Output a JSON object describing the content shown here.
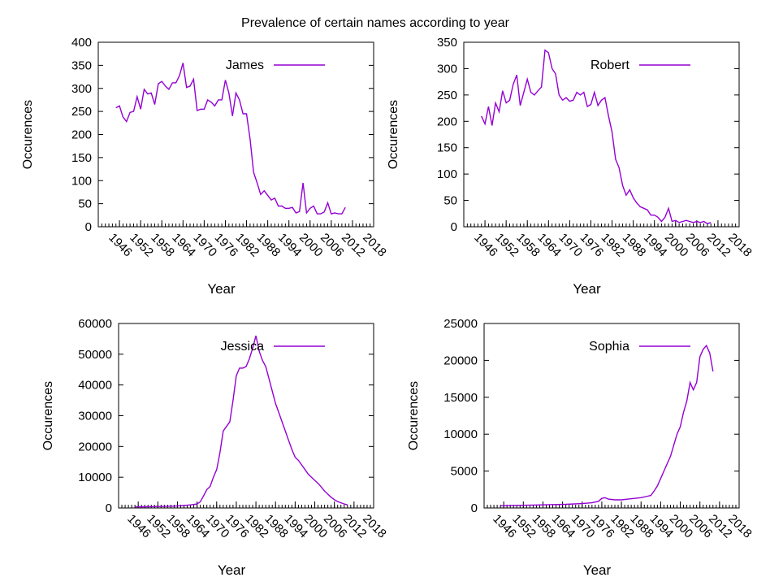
{
  "figure_title": "Prevalence of certain names according to year",
  "series_color": "#9400d3",
  "chart_data": [
    {
      "type": "line",
      "title": "",
      "xlabel": "Year",
      "ylabel": "Occurences",
      "legend": "top-right",
      "grid": false,
      "xlim": [
        1940,
        2018
      ],
      "ylim": [
        0,
        400
      ],
      "xticks": [
        "1946",
        "1952",
        "1958",
        "1964",
        "1970",
        "1976",
        "1982",
        "1988",
        "1994",
        "2000",
        "2006",
        "2012",
        "2018"
      ],
      "yticks": [
        "0",
        "50",
        "100",
        "150",
        "200",
        "250",
        "300",
        "350",
        "400"
      ],
      "series": [
        {
          "name": "James",
          "x": [
            1945,
            1946,
            1947,
            1948,
            1949,
            1950,
            1951,
            1952,
            1953,
            1954,
            1955,
            1956,
            1957,
            1958,
            1959,
            1960,
            1961,
            1962,
            1963,
            1964,
            1965,
            1966,
            1967,
            1968,
            1969,
            1970,
            1971,
            1972,
            1973,
            1974,
            1975,
            1976,
            1977,
            1978,
            1979,
            1980,
            1981,
            1982,
            1983,
            1984,
            1985,
            1986,
            1987,
            1988,
            1989,
            1990,
            1991,
            1992,
            1993,
            1994,
            1995,
            1996,
            1997,
            1998,
            1999,
            2000,
            2001,
            2002,
            2003,
            2004,
            2005,
            2006,
            2007,
            2008,
            2009,
            2010
          ],
          "values": [
            258,
            262,
            238,
            228,
            248,
            250,
            282,
            255,
            298,
            288,
            290,
            265,
            310,
            315,
            305,
            298,
            312,
            312,
            328,
            355,
            302,
            305,
            320,
            252,
            255,
            255,
            275,
            270,
            262,
            275,
            275,
            318,
            290,
            240,
            290,
            275,
            245,
            245,
            190,
            118,
            95,
            70,
            78,
            68,
            58,
            62,
            45,
            45,
            40,
            40,
            42,
            30,
            33,
            95,
            30,
            40,
            45,
            28,
            28,
            32,
            52,
            28,
            30,
            28,
            28,
            42
          ]
        }
      ]
    },
    {
      "type": "line",
      "title": "",
      "xlabel": "Year",
      "ylabel": "Occurences",
      "legend": "top-right",
      "grid": false,
      "xlim": [
        1940,
        2018
      ],
      "ylim": [
        0,
        350
      ],
      "xticks": [
        "1946",
        "1952",
        "1958",
        "1964",
        "1970",
        "1976",
        "1982",
        "1988",
        "1994",
        "2000",
        "2006",
        "2012",
        "2018"
      ],
      "yticks": [
        "0",
        "50",
        "100",
        "150",
        "200",
        "250",
        "300",
        "350"
      ],
      "series": [
        {
          "name": "Robert",
          "x": [
            1945,
            1946,
            1947,
            1948,
            1949,
            1950,
            1951,
            1952,
            1953,
            1954,
            1955,
            1956,
            1957,
            1958,
            1959,
            1960,
            1961,
            1962,
            1963,
            1964,
            1965,
            1966,
            1967,
            1968,
            1969,
            1970,
            1971,
            1972,
            1973,
            1974,
            1975,
            1976,
            1977,
            1978,
            1979,
            1980,
            1981,
            1982,
            1983,
            1984,
            1985,
            1986,
            1987,
            1988,
            1989,
            1990,
            1991,
            1992,
            1993,
            1994,
            1995,
            1996,
            1997,
            1998,
            1999,
            2000,
            2001,
            2002,
            2003,
            2004,
            2005,
            2006,
            2007,
            2008,
            2009,
            2010
          ],
          "values": [
            210,
            195,
            228,
            192,
            235,
            218,
            258,
            235,
            240,
            270,
            288,
            230,
            255,
            280,
            255,
            250,
            258,
            265,
            335,
            330,
            300,
            290,
            250,
            240,
            245,
            238,
            240,
            255,
            250,
            255,
            228,
            232,
            255,
            230,
            240,
            245,
            210,
            180,
            128,
            112,
            78,
            60,
            70,
            55,
            45,
            38,
            35,
            32,
            22,
            22,
            18,
            10,
            18,
            35,
            10,
            12,
            8,
            10,
            12,
            10,
            8,
            10,
            8,
            10,
            6,
            8
          ]
        }
      ]
    },
    {
      "type": "line",
      "title": "",
      "xlabel": "Year",
      "ylabel": "Occurences",
      "legend": "top-right",
      "grid": false,
      "xlim": [
        1940,
        2018
      ],
      "ylim": [
        0,
        60000
      ],
      "xticks": [
        "1946",
        "1952",
        "1958",
        "1964",
        "1970",
        "1976",
        "1982",
        "1988",
        "1994",
        "2000",
        "2006",
        "2012",
        "2018"
      ],
      "yticks": [
        "0",
        "10000",
        "20000",
        "30000",
        "40000",
        "50000",
        "60000"
      ],
      "series": [
        {
          "name": "Jessica",
          "x": [
            1945,
            1948,
            1951,
            1954,
            1957,
            1960,
            1962,
            1964,
            1965,
            1966,
            1967,
            1968,
            1969,
            1970,
            1971,
            1972,
            1973,
            1974,
            1975,
            1976,
            1977,
            1978,
            1979,
            1980,
            1981,
            1982,
            1983,
            1984,
            1985,
            1986,
            1987,
            1988,
            1989,
            1990,
            1991,
            1992,
            1993,
            1994,
            1995,
            1996,
            1997,
            1998,
            1999,
            2000,
            2001,
            2002,
            2003,
            2004,
            2005,
            2006,
            2007,
            2008,
            2009,
            2010
          ],
          "values": [
            350,
            400,
            450,
            500,
            600,
            800,
            1000,
            1300,
            2000,
            4000,
            6000,
            7000,
            10000,
            12500,
            18000,
            25000,
            26500,
            28000,
            35000,
            43000,
            45500,
            45500,
            46000,
            48500,
            52000,
            56000,
            51000,
            48000,
            46000,
            42000,
            38000,
            34000,
            31000,
            28000,
            25000,
            22000,
            19000,
            16500,
            15500,
            14000,
            12500,
            11000,
            10000,
            9000,
            8000,
            6800,
            5500,
            4500,
            3500,
            2700,
            2100,
            1700,
            1300,
            1000
          ]
        }
      ]
    },
    {
      "type": "line",
      "title": "",
      "xlabel": "Year",
      "ylabel": "Occurences",
      "legend": "top-right",
      "grid": false,
      "xlim": [
        1940,
        2018
      ],
      "ylim": [
        0,
        25000
      ],
      "xticks": [
        "1946",
        "1952",
        "1958",
        "1964",
        "1970",
        "1976",
        "1982",
        "1988",
        "1994",
        "2000",
        "2006",
        "2012",
        "2018"
      ],
      "yticks": [
        "0",
        "5000",
        "10000",
        "15000",
        "20000",
        "25000"
      ],
      "series": [
        {
          "name": "Sophia",
          "x": [
            1945,
            1950,
            1955,
            1960,
            1965,
            1970,
            1973,
            1975,
            1976,
            1977,
            1978,
            1980,
            1982,
            1984,
            1986,
            1988,
            1990,
            1991,
            1992,
            1993,
            1994,
            1995,
            1996,
            1997,
            1998,
            1999,
            2000,
            2001,
            2002,
            2003,
            2004,
            2005,
            2006,
            2007,
            2008,
            2009,
            2010
          ],
          "values": [
            300,
            350,
            400,
            450,
            500,
            600,
            700,
            900,
            1300,
            1400,
            1200,
            1100,
            1100,
            1200,
            1300,
            1400,
            1600,
            1700,
            2300,
            3000,
            4000,
            5000,
            6000,
            7000,
            8500,
            10000,
            11000,
            13000,
            14500,
            17000,
            16000,
            17000,
            20500,
            21500,
            22000,
            21000,
            18500
          ]
        }
      ]
    }
  ]
}
